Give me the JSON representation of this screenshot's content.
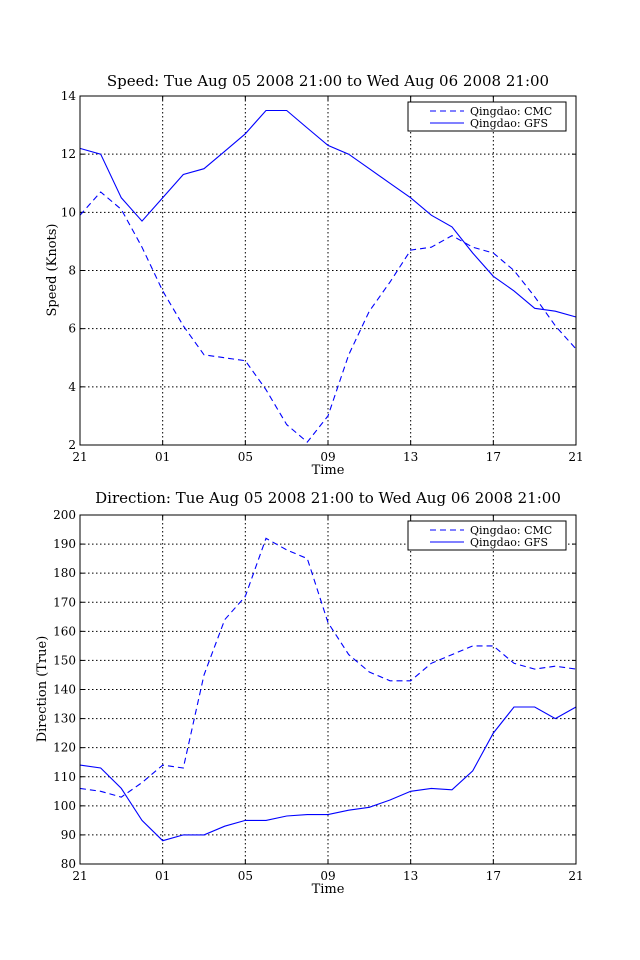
{
  "chart_data": [
    {
      "type": "line",
      "title": "Speed: Tue Aug 05 2008 21:00 to Wed Aug 06 2008 21:00",
      "xlabel": "Time",
      "ylabel": "Speed (Knots)",
      "x_tick_labels": [
        "21",
        "01",
        "05",
        "09",
        "13",
        "17",
        "21"
      ],
      "ylim": [
        2,
        14
      ],
      "y_ticks": [
        2,
        4,
        6,
        8,
        10,
        12,
        14
      ],
      "grid": true,
      "legend_position": "top-right",
      "x": [
        "21",
        "22",
        "23",
        "00",
        "01",
        "02",
        "03",
        "04",
        "05",
        "06",
        "07",
        "08",
        "09",
        "10",
        "11",
        "12",
        "13",
        "14",
        "15",
        "16",
        "17",
        "18",
        "19",
        "20",
        "21"
      ],
      "series": [
        {
          "name": "Qingdao: CMC",
          "style": "dashed",
          "color": "#0000ff",
          "values": [
            9.9,
            10.7,
            10.1,
            8.8,
            7.3,
            6.1,
            5.1,
            5.0,
            4.9,
            3.9,
            2.7,
            2.1,
            3.0,
            5.1,
            6.6,
            7.6,
            8.7,
            8.8,
            9.2,
            8.8,
            8.6,
            8.0,
            7.1,
            6.1,
            5.3
          ]
        },
        {
          "name": "Qingdao: GFS",
          "style": "solid",
          "color": "#0000ff",
          "values": [
            12.2,
            12.0,
            10.5,
            9.7,
            10.5,
            11.3,
            11.5,
            12.1,
            12.7,
            13.5,
            13.5,
            12.9,
            12.3,
            12.0,
            11.5,
            11.0,
            10.5,
            9.9,
            9.5,
            8.6,
            7.8,
            7.3,
            6.7,
            6.6,
            6.4
          ]
        }
      ]
    },
    {
      "type": "line",
      "title": "Direction: Tue Aug 05 2008 21:00 to Wed Aug 06 2008 21:00",
      "xlabel": "Time",
      "ylabel": "Direction (True)",
      "x_tick_labels": [
        "21",
        "01",
        "05",
        "09",
        "13",
        "17",
        "21"
      ],
      "ylim": [
        80,
        200
      ],
      "y_ticks": [
        80,
        90,
        100,
        110,
        120,
        130,
        140,
        150,
        160,
        170,
        180,
        190,
        200
      ],
      "grid": true,
      "legend_position": "top-right",
      "x": [
        "21",
        "22",
        "23",
        "00",
        "01",
        "02",
        "03",
        "04",
        "05",
        "06",
        "07",
        "08",
        "09",
        "10",
        "11",
        "12",
        "13",
        "14",
        "15",
        "16",
        "17",
        "18",
        "19",
        "20",
        "21"
      ],
      "series": [
        {
          "name": "Qingdao: CMC",
          "style": "dashed",
          "color": "#0000ff",
          "values": [
            106,
            105,
            103,
            108,
            114,
            113,
            145,
            164,
            172,
            192,
            188,
            185,
            163,
            152,
            146,
            143,
            143,
            149,
            152,
            155,
            155,
            149,
            147,
            148,
            147
          ]
        },
        {
          "name": "Qingdao: GFS",
          "style": "solid",
          "color": "#0000ff",
          "values": [
            114,
            113,
            106,
            95,
            88,
            90,
            90,
            93,
            95,
            95,
            96.5,
            97,
            97,
            98.5,
            99.5,
            102,
            105,
            106,
            105.5,
            112,
            125,
            134,
            134,
            130,
            134
          ]
        }
      ]
    }
  ]
}
